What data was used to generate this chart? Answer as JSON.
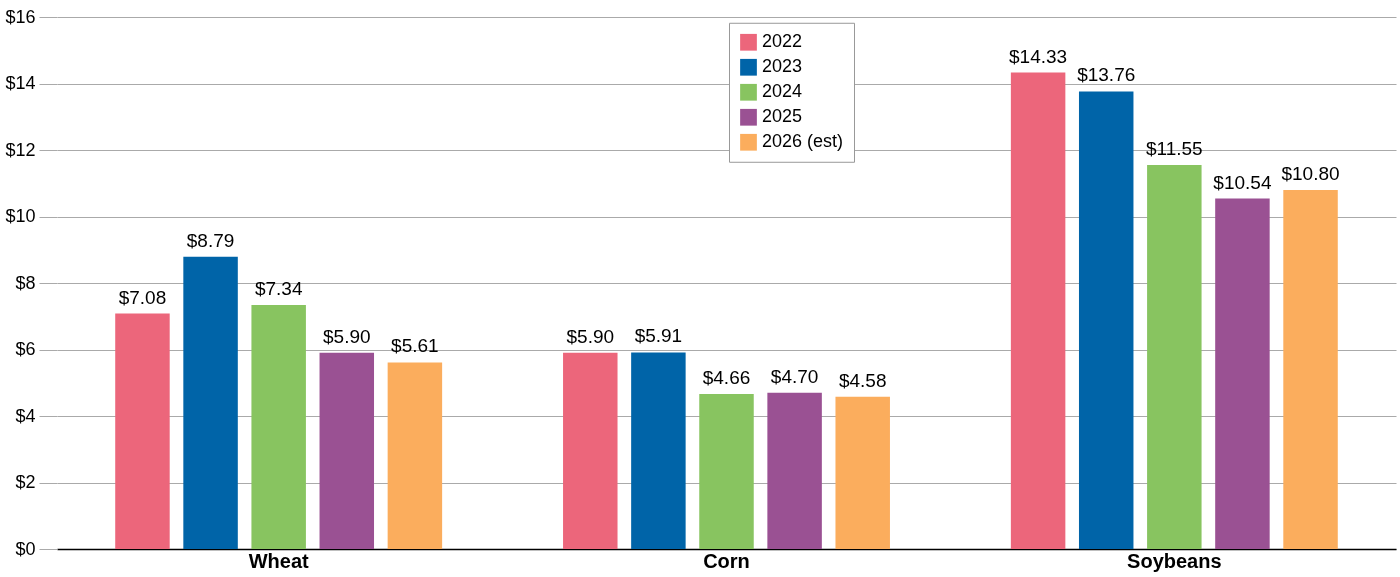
{
  "chart_data": {
    "type": "bar",
    "categories": [
      "Wheat",
      "Corn",
      "Soybeans"
    ],
    "series": [
      {
        "name": "2022",
        "color": "#ec667b",
        "values": [
          7.08,
          5.9,
          14.33
        ],
        "value_labels": [
          "$7.08",
          "$5.90",
          "$14.33"
        ]
      },
      {
        "name": "2023",
        "color": "#0064a8",
        "values": [
          8.79,
          5.91,
          13.76
        ],
        "value_labels": [
          "$8.79",
          "$5.91",
          "$13.76"
        ]
      },
      {
        "name": "2024",
        "color": "#88c460",
        "values": [
          7.34,
          4.66,
          11.55
        ],
        "value_labels": [
          "$7.34",
          "$4.66",
          "$11.55"
        ]
      },
      {
        "name": "2025",
        "color": "#9a5193",
        "values": [
          5.9,
          4.7,
          10.54
        ],
        "value_labels": [
          "$5.90",
          "$4.70",
          "$10.54"
        ]
      },
      {
        "name": "2026 (est)",
        "color": "#fbad5d",
        "values": [
          5.61,
          4.58,
          10.8
        ],
        "value_labels": [
          "$5.61",
          "$4.58",
          "$10.80"
        ]
      }
    ],
    "ylim": [
      0,
      16
    ],
    "yticks": [
      {
        "value": 0,
        "label": "$0"
      },
      {
        "value": 2,
        "label": "$2"
      },
      {
        "value": 4,
        "label": "$4"
      },
      {
        "value": 6,
        "label": "$6"
      },
      {
        "value": 8,
        "label": "$8"
      },
      {
        "value": 10,
        "label": "$10"
      },
      {
        "value": 12,
        "label": "$12"
      },
      {
        "value": 14,
        "label": "$14"
      },
      {
        "value": 16,
        "label": "$16"
      }
    ],
    "grid": "y",
    "legend": "top"
  }
}
